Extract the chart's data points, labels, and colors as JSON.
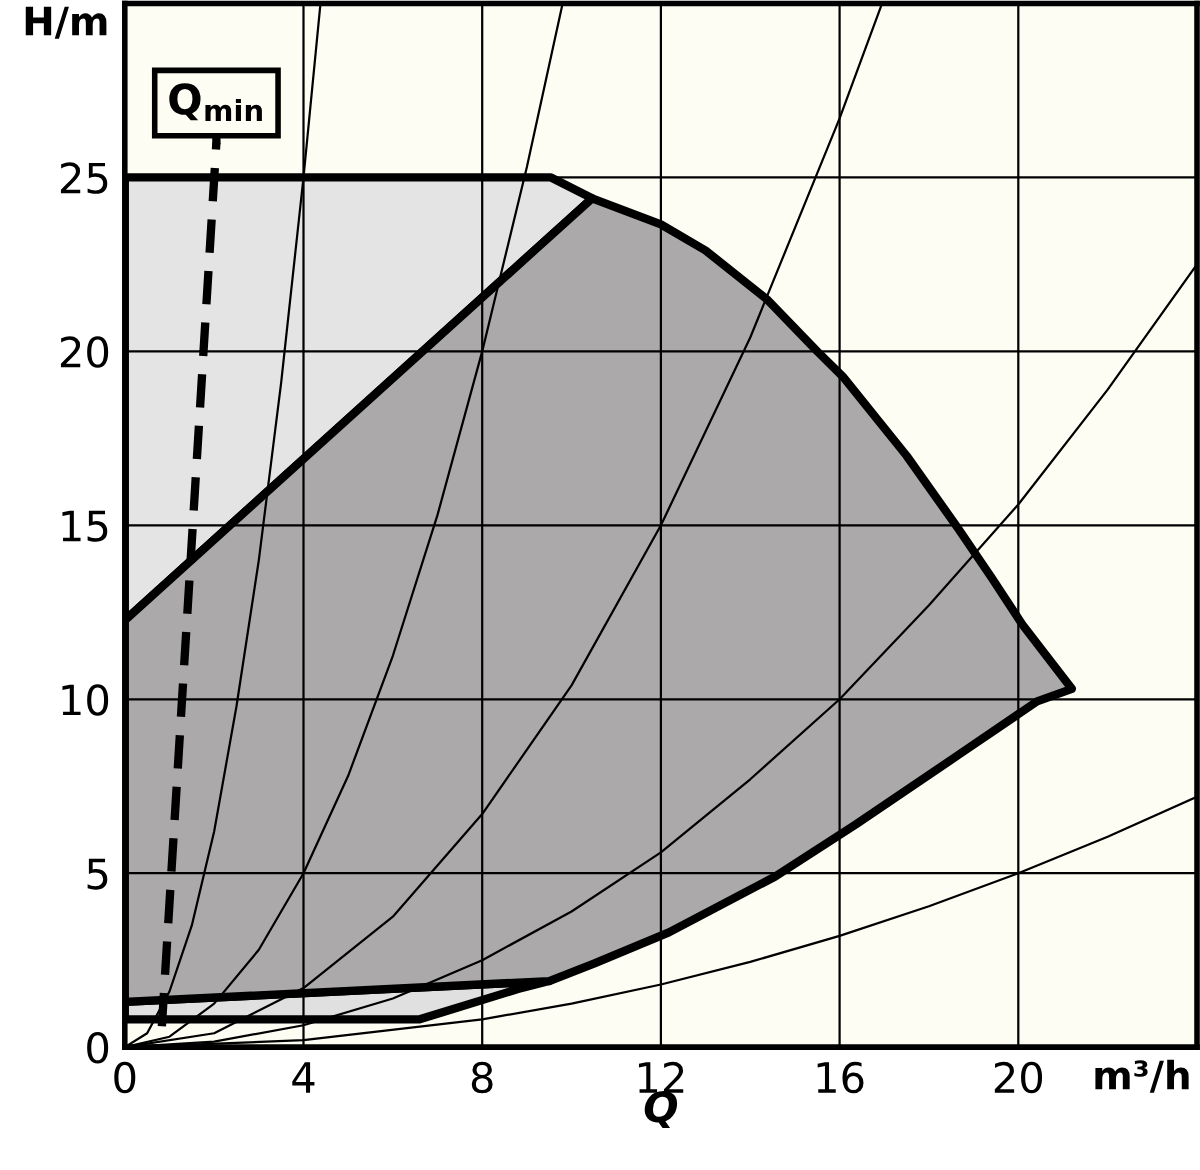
{
  "chart_data": {
    "type": "line",
    "xlabel": "Q",
    "ylabel": "H/m",
    "xlim": [
      0,
      24
    ],
    "ylim": [
      0,
      30
    ],
    "xticks": [
      0,
      4,
      8,
      12,
      16,
      20
    ],
    "yticks": [
      0,
      5,
      10,
      15,
      20,
      25
    ],
    "grid": true,
    "annotations": [
      "m³/h",
      {
        "text": "Q$_{min}$",
        "x": 2.05,
        "y": 26
      }
    ],
    "series": [
      {
        "type": "area",
        "color": "#e4e4e4",
        "x": [
          0,
          9.54,
          10.46,
          0
        ],
        "values": [
          25,
          25,
          24.4,
          12.27
        ]
      },
      {
        "type": "area",
        "color": "#e0e0e0",
        "x": [
          0,
          9.5,
          8.8,
          6.6,
          0
        ],
        "values": [
          1.3,
          1.9,
          1.67,
          0.8,
          0.8
        ]
      },
      {
        "type": "area",
        "color": "#aba9aa",
        "x": [
          0,
          10.46,
          12,
          13,
          14.37,
          15.5,
          16.07,
          17.5,
          18.66,
          19.4,
          20.09,
          21.2,
          20.42,
          18.66,
          16.36,
          14.55,
          12.18,
          10.5,
          9.5,
          0
        ],
        "values": [
          12.27,
          24.4,
          23.65,
          22.9,
          21.5,
          20.0,
          19.28,
          17.0,
          14.9,
          13.5,
          12.15,
          10.3,
          9.94,
          8.4,
          6.4,
          4.9,
          3.3,
          2.4,
          1.9,
          1.3
        ]
      },
      {
        "color": "#000000",
        "x": [
          0,
          0.5,
          1,
          1.5,
          2,
          2.5,
          3,
          3.5,
          4,
          4.38
        ],
        "values": [
          0,
          0.4,
          1.6,
          3.5,
          6.2,
          9.8,
          14,
          19.1,
          25,
          30
        ]
      },
      {
        "color": "#000000",
        "x": [
          0,
          1,
          2,
          3,
          4,
          5,
          6,
          7,
          8,
          9,
          9.8
        ],
        "values": [
          0,
          0.3,
          1.25,
          2.8,
          5,
          7.8,
          11.25,
          15.3,
          20,
          25.3,
          30
        ]
      },
      {
        "color": "#000000",
        "x": [
          0,
          2,
          4,
          6,
          8,
          10,
          12,
          14,
          16,
          16.95
        ],
        "values": [
          0,
          0.4,
          1.7,
          3.75,
          6.7,
          10.4,
          15,
          20.4,
          26.7,
          30
        ]
      },
      {
        "color": "#000000",
        "x": [
          0,
          2,
          4,
          6,
          8,
          10,
          12,
          14,
          16,
          18,
          20,
          22,
          24
        ],
        "values": [
          0,
          0.16,
          0.63,
          1.4,
          2.5,
          3.9,
          5.6,
          7.7,
          10,
          12.7,
          15.6,
          18.9,
          22.5
        ]
      },
      {
        "color": "#000000",
        "x": [
          0,
          4,
          8,
          10,
          12,
          14,
          16,
          18,
          20,
          22,
          24
        ],
        "values": [
          0,
          0.2,
          0.8,
          1.25,
          1.8,
          2.45,
          3.2,
          4.05,
          5,
          6.05,
          7.2
        ]
      },
      {
        "color": "#000000",
        "line_style": "dashed",
        "x": [
          0.83,
          2.05
        ],
        "values": [
          0.6,
          26
        ]
      }
    ]
  }
}
